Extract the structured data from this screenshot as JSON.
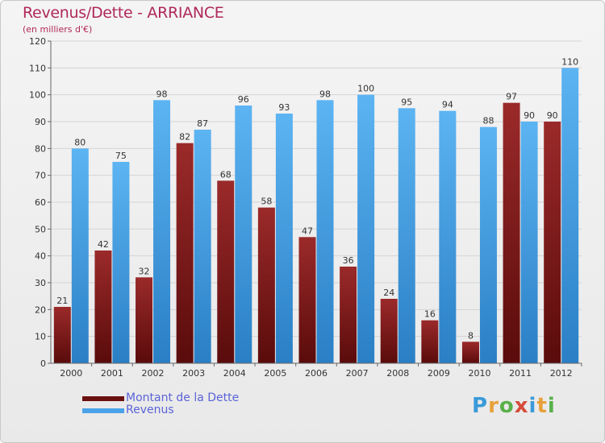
{
  "chart_data": {
    "type": "bar",
    "title": "Revenus/Dette - ARRIANCE",
    "subtitle": "(en milliers d'€)",
    "categories": [
      "2000",
      "2001",
      "2002",
      "2003",
      "2004",
      "2005",
      "2006",
      "2007",
      "2008",
      "2009",
      "2010",
      "2011",
      "2012"
    ],
    "series": [
      {
        "name": "Montant de la Dette",
        "color": "#7a1515",
        "values": [
          21,
          42,
          32,
          82,
          68,
          58,
          47,
          36,
          24,
          16,
          8,
          97,
          90
        ]
      },
      {
        "name": "Revenus",
        "color": "#4aa3e8",
        "values": [
          80,
          75,
          98,
          87,
          96,
          93,
          98,
          100,
          95,
          94,
          88,
          90,
          110
        ]
      }
    ],
    "ylim": [
      0,
      120
    ],
    "yticks": [
      0,
      10,
      20,
      30,
      40,
      50,
      60,
      70,
      80,
      90,
      100,
      110,
      120
    ],
    "grid": true,
    "legend": "bottom-left"
  },
  "logo": {
    "text": "Proxiti",
    "letters": [
      "P",
      "r",
      "o",
      "x",
      "i",
      "t",
      "i"
    ],
    "colors": [
      "#3a9ad9",
      "#e8a13a",
      "#59b04a",
      "#d64c3b",
      "#3a9ad9",
      "#e8a13a",
      "#59b04a"
    ]
  }
}
